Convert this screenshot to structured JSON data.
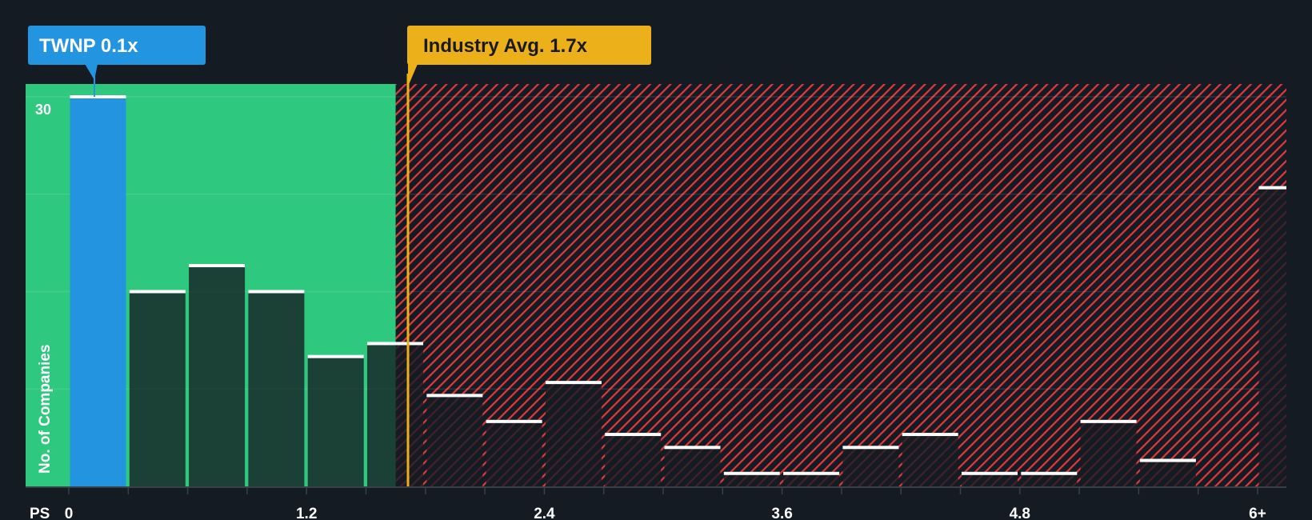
{
  "chart_data": {
    "type": "bar",
    "title": "",
    "xlabel": "PS",
    "ylabel": "No. of Companies",
    "bin_width": 0.3,
    "bins_start": [
      0,
      0.3,
      0.6,
      0.9,
      1.2,
      1.5,
      1.8,
      2.1,
      2.4,
      2.7,
      3.0,
      3.3,
      3.6,
      3.9,
      4.2,
      4.5,
      4.8,
      5.1,
      5.4,
      5.7,
      6.0
    ],
    "values": [
      30,
      15,
      17,
      15,
      10,
      11,
      7,
      5,
      8,
      4,
      3,
      1,
      1,
      3,
      4,
      1,
      1,
      5,
      2,
      0,
      23
    ],
    "x_ticks": [
      {
        "value": 0,
        "label": "0"
      },
      {
        "value": 1.2,
        "label": "1.2"
      },
      {
        "value": 2.4,
        "label": "2.4"
      },
      {
        "value": 3.6,
        "label": "3.6"
      },
      {
        "value": 4.8,
        "label": "4.8"
      },
      {
        "value": 6.0,
        "label": "6+"
      }
    ],
    "y_ticks": [
      {
        "value": 30,
        "label": "30"
      }
    ],
    "gridlines": [
      7.5,
      15,
      22.5,
      30
    ],
    "ylim": [
      0,
      31.2
    ],
    "highlight_bin": 0,
    "company": {
      "label": "TWNP 0.1x",
      "value": 0.1
    },
    "industry": {
      "label": "Industry Avg. 1.7x",
      "value": 1.7
    },
    "fair_zone_end": 1.65,
    "colors": {
      "background": "#151b23",
      "green_zone": "#2ec87e",
      "red_hatch": "#e0393e",
      "company": "#2394e0",
      "industry": "#ebb01a",
      "bar": "#161b22"
    }
  }
}
